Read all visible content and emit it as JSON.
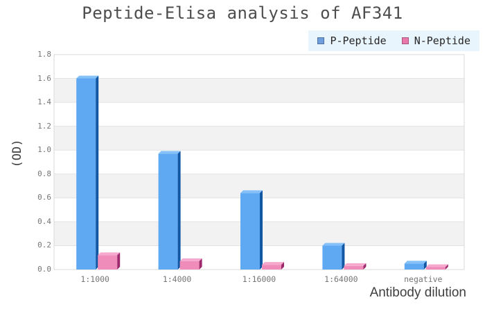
{
  "chart_data": {
    "type": "bar",
    "title": "Peptide-Elisa analysis of AF341",
    "xlabel": "Antibody dilution",
    "ylabel": "(OD)",
    "categories": [
      "1:1000",
      "1:4000",
      "1:16000",
      "1:64000",
      "negative"
    ],
    "series": [
      {
        "name": "P-Peptide",
        "values": [
          1.6,
          0.97,
          0.64,
          0.2,
          0.05
        ],
        "color_front": "#5fa8f2",
        "color_top": "#85c0f8",
        "color_side": "#1257a4",
        "legend_color": "#6f9fdc"
      },
      {
        "name": "N-Peptide",
        "values": [
          0.12,
          0.07,
          0.04,
          0.03,
          0.02
        ],
        "color_front": "#f08cba",
        "color_top": "#f6a8cd",
        "color_side": "#9e2a6e",
        "legend_color": "#e877ab"
      }
    ],
    "ylim": [
      0,
      1.8
    ],
    "ytick_step": 0.2,
    "legend_position": "top-right",
    "grid": true,
    "background_bands": true
  },
  "colors": {
    "title_text": "#4d4d4d",
    "tick_label": "#757575",
    "axis_title": "#3f3f3f",
    "legend_bg": "#e9f5fc",
    "legend_text": "#262626",
    "gridline": "#e3e3e3",
    "plot_border": "#d9d9d9",
    "band_fill": "#f2f2f2",
    "band_alt_fill": "#ffffff",
    "page_bg": "#ffffff"
  }
}
